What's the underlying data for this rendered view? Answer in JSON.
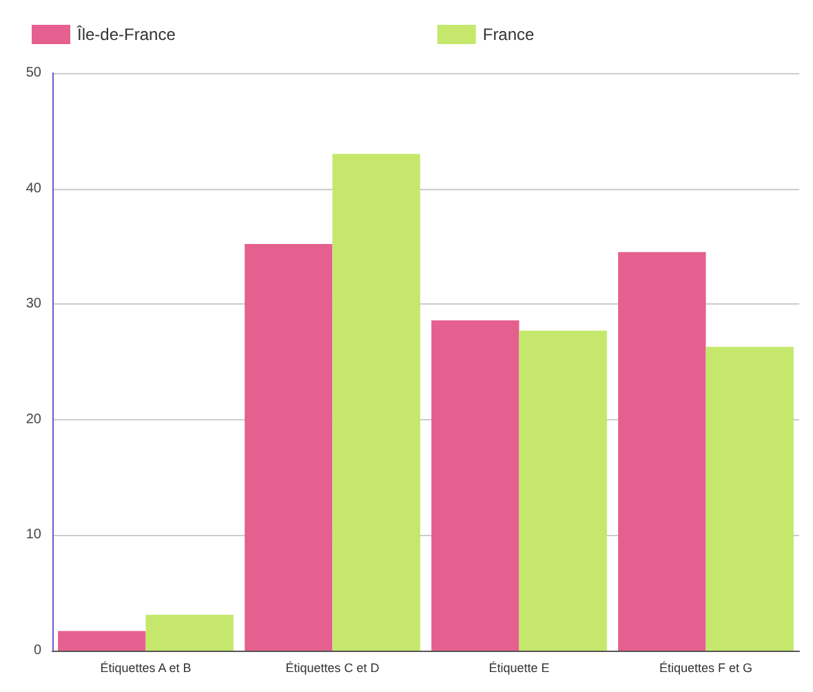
{
  "chart_data": {
    "type": "bar",
    "categories": [
      "Étiquettes A et B",
      "Étiquettes C et D",
      "Étiquette E",
      "Étiquettes F et G"
    ],
    "series": [
      {
        "name": "Île-de-France",
        "color": "#e5608f",
        "values": [
          1.7,
          35.2,
          28.6,
          34.5
        ]
      },
      {
        "name": "France",
        "color": "#c5e86c",
        "values": [
          3.1,
          43,
          27.7,
          26.3
        ]
      }
    ],
    "ylim": [
      0,
      50
    ],
    "yticks": [
      0,
      10,
      20,
      30,
      40,
      50
    ],
    "grid": "y",
    "legend": "top"
  }
}
